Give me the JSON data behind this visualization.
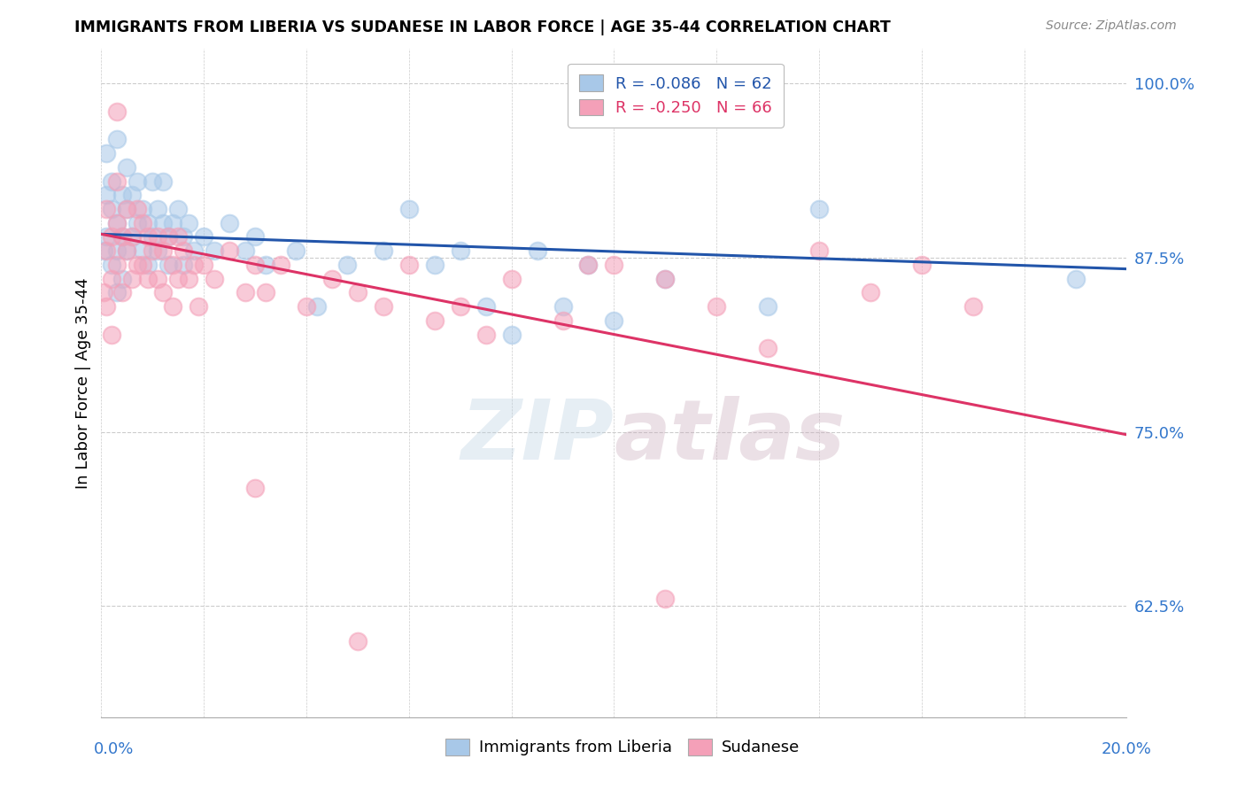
{
  "title": "IMMIGRANTS FROM LIBERIA VS SUDANESE IN LABOR FORCE | AGE 35-44 CORRELATION CHART",
  "source": "Source: ZipAtlas.com",
  "ylabel": "In Labor Force | Age 35-44",
  "legend_bottom": [
    "Immigrants from Liberia",
    "Sudanese"
  ],
  "legend_top_labels": [
    "R = -0.086   N = 62",
    "R = -0.250   N = 66"
  ],
  "blue_color": "#a8c8e8",
  "pink_color": "#f4a0b8",
  "blue_line_color": "#2255aa",
  "pink_line_color": "#dd3366",
  "watermark": "ZIPatlas",
  "xlim": [
    0.0,
    0.2
  ],
  "ylim": [
    0.545,
    1.025
  ],
  "yticks": [
    0.625,
    0.75,
    0.875,
    1.0
  ],
  "ytick_labels": [
    "62.5%",
    "75.0%",
    "87.5%",
    "100.0%"
  ],
  "blue_scatter_x": [
    0.0005,
    0.001,
    0.001,
    0.001,
    0.002,
    0.002,
    0.002,
    0.003,
    0.003,
    0.003,
    0.003,
    0.004,
    0.004,
    0.004,
    0.005,
    0.005,
    0.005,
    0.006,
    0.006,
    0.007,
    0.007,
    0.008,
    0.008,
    0.009,
    0.009,
    0.01,
    0.01,
    0.011,
    0.011,
    0.012,
    0.012,
    0.013,
    0.013,
    0.014,
    0.015,
    0.016,
    0.016,
    0.017,
    0.018,
    0.02,
    0.022,
    0.025,
    0.028,
    0.03,
    0.032,
    0.038,
    0.042,
    0.048,
    0.055,
    0.06,
    0.065,
    0.07,
    0.075,
    0.08,
    0.085,
    0.09,
    0.095,
    0.1,
    0.11,
    0.13,
    0.14,
    0.19
  ],
  "blue_scatter_y": [
    0.88,
    0.92,
    0.95,
    0.89,
    0.93,
    0.91,
    0.87,
    0.96,
    0.9,
    0.88,
    0.85,
    0.92,
    0.89,
    0.86,
    0.94,
    0.91,
    0.88,
    0.92,
    0.89,
    0.93,
    0.9,
    0.91,
    0.88,
    0.9,
    0.87,
    0.93,
    0.89,
    0.91,
    0.88,
    0.9,
    0.93,
    0.89,
    0.87,
    0.9,
    0.91,
    0.89,
    0.87,
    0.9,
    0.88,
    0.89,
    0.88,
    0.9,
    0.88,
    0.89,
    0.87,
    0.88,
    0.84,
    0.87,
    0.88,
    0.91,
    0.87,
    0.88,
    0.84,
    0.82,
    0.88,
    0.84,
    0.87,
    0.83,
    0.86,
    0.84,
    0.91,
    0.86
  ],
  "pink_scatter_x": [
    0.0005,
    0.001,
    0.001,
    0.001,
    0.002,
    0.002,
    0.002,
    0.003,
    0.003,
    0.003,
    0.003,
    0.004,
    0.004,
    0.005,
    0.005,
    0.006,
    0.006,
    0.007,
    0.007,
    0.008,
    0.008,
    0.009,
    0.009,
    0.01,
    0.011,
    0.011,
    0.012,
    0.012,
    0.013,
    0.014,
    0.014,
    0.015,
    0.015,
    0.016,
    0.017,
    0.018,
    0.019,
    0.02,
    0.022,
    0.025,
    0.028,
    0.03,
    0.032,
    0.035,
    0.04,
    0.045,
    0.05,
    0.055,
    0.06,
    0.065,
    0.07,
    0.075,
    0.08,
    0.09,
    0.095,
    0.1,
    0.11,
    0.12,
    0.13,
    0.14,
    0.15,
    0.16,
    0.17,
    0.03,
    0.05,
    0.11
  ],
  "pink_scatter_y": [
    0.85,
    0.88,
    0.91,
    0.84,
    0.89,
    0.86,
    0.82,
    0.98,
    0.93,
    0.9,
    0.87,
    0.89,
    0.85,
    0.91,
    0.88,
    0.89,
    0.86,
    0.91,
    0.87,
    0.9,
    0.87,
    0.89,
    0.86,
    0.88,
    0.89,
    0.86,
    0.88,
    0.85,
    0.89,
    0.87,
    0.84,
    0.89,
    0.86,
    0.88,
    0.86,
    0.87,
    0.84,
    0.87,
    0.86,
    0.88,
    0.85,
    0.87,
    0.85,
    0.87,
    0.84,
    0.86,
    0.85,
    0.84,
    0.87,
    0.83,
    0.84,
    0.82,
    0.86,
    0.83,
    0.87,
    0.87,
    0.86,
    0.84,
    0.81,
    0.88,
    0.85,
    0.87,
    0.84,
    0.71,
    0.6,
    0.63
  ],
  "blue_trend_x": [
    0.0,
    0.2
  ],
  "blue_trend_y": [
    0.892,
    0.867
  ],
  "pink_trend_x": [
    0.0,
    0.2
  ],
  "pink_trend_y": [
    0.892,
    0.748
  ]
}
